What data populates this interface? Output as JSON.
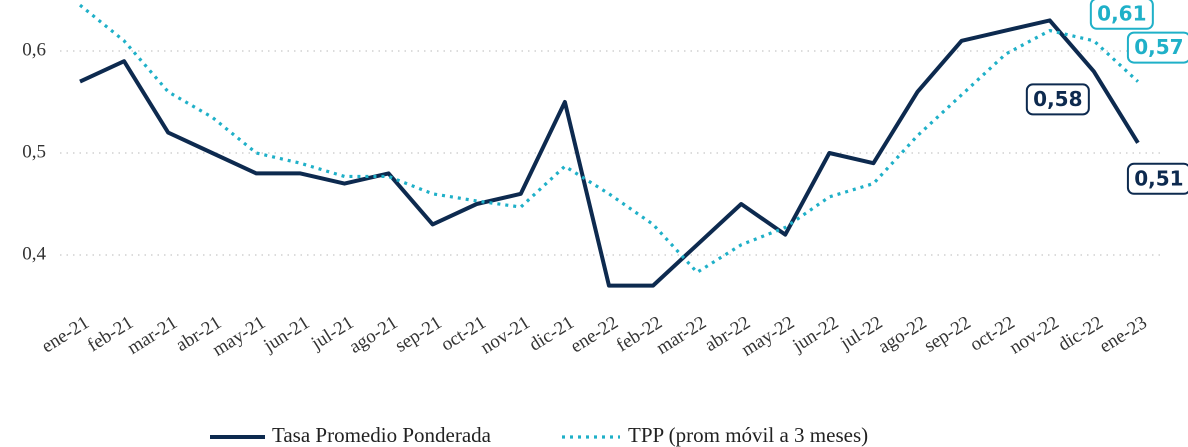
{
  "chart_data": {
    "type": "line",
    "categories": [
      "ene-21",
      "feb-21",
      "mar-21",
      "abr-21",
      "may-21",
      "jun-21",
      "jul-21",
      "ago-21",
      "sep-21",
      "oct-21",
      "nov-21",
      "dic-21",
      "ene-22",
      "feb-22",
      "mar-22",
      "abr-22",
      "may-22",
      "jun-22",
      "jul-22",
      "ago-22",
      "sep-22",
      "oct-22",
      "nov-22",
      "dic-22",
      "ene-23"
    ],
    "series": [
      {
        "name": "Tasa Promedio Ponderada",
        "color": "#0d2a4f",
        "values": [
          0.57,
          0.59,
          0.52,
          0.5,
          0.48,
          0.48,
          0.47,
          0.48,
          0.43,
          0.45,
          0.46,
          0.55,
          0.37,
          0.37,
          0.41,
          0.45,
          0.42,
          0.5,
          0.49,
          0.56,
          0.61,
          0.62,
          0.63,
          0.58,
          0.51
        ],
        "value_labels": [
          null,
          null,
          null,
          null,
          null,
          null,
          null,
          null,
          null,
          null,
          null,
          null,
          null,
          null,
          null,
          null,
          null,
          null,
          null,
          null,
          null,
          null,
          null,
          "0,58",
          "0,51"
        ]
      },
      {
        "name": "TPP (prom móvil a 3 meses)",
        "color": "#1fb0c8",
        "values": [
          0.645,
          0.61,
          0.56,
          0.535,
          0.5,
          0.49,
          0.477,
          0.477,
          0.46,
          0.453,
          0.447,
          0.487,
          0.46,
          0.43,
          0.383,
          0.41,
          0.427,
          0.457,
          0.47,
          0.517,
          0.557,
          0.597,
          0.62,
          0.61,
          0.57
        ],
        "value_labels": [
          null,
          null,
          null,
          null,
          null,
          null,
          null,
          null,
          null,
          null,
          null,
          null,
          null,
          null,
          null,
          null,
          null,
          null,
          null,
          null,
          null,
          null,
          null,
          "0,61",
          "0,57"
        ]
      }
    ],
    "ylim": [
      0.35,
      0.65
    ],
    "yticks": [
      {
        "value": 0.4,
        "label": "0,4"
      },
      {
        "value": 0.5,
        "label": "0,5"
      },
      {
        "value": 0.6,
        "label": "0,6"
      }
    ],
    "grid": true,
    "legend": "bottom"
  }
}
